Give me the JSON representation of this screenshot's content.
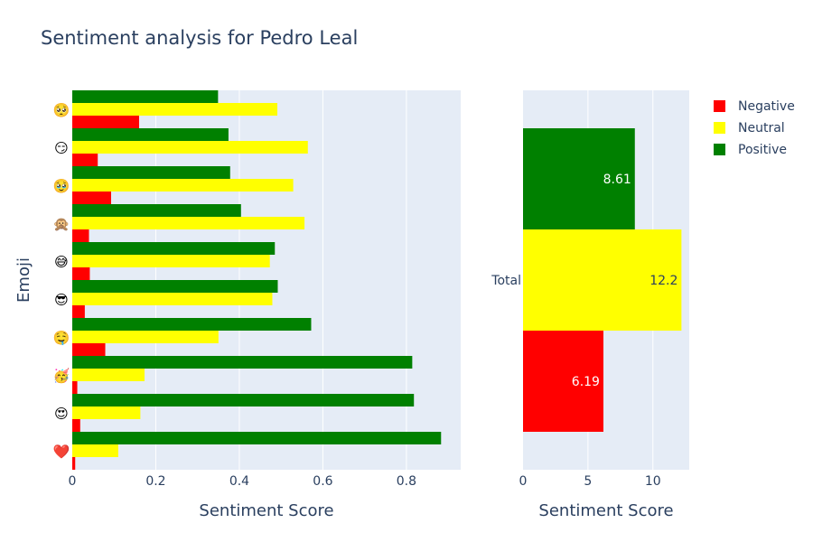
{
  "title": "Sentiment analysis for Pedro Leal",
  "chart_data": [
    {
      "type": "bar",
      "orientation": "horizontal",
      "ylabel": "Emoji",
      "xlabel": "Sentiment Score",
      "categories": [
        "❤️",
        "😍",
        "🥳",
        "🤤",
        "😎",
        "😅",
        "🙊",
        "🥹",
        "😏",
        "🥺"
      ],
      "xlim": [
        0,
        0.93
      ],
      "xticks": [
        "0",
        "0.2",
        "0.4",
        "0.6",
        "0.8"
      ],
      "xtick_values": [
        0,
        0.2,
        0.4,
        0.6,
        0.8
      ],
      "grid": true,
      "series": [
        {
          "name": "Negative",
          "color": "#ff0000",
          "values": [
            0.007,
            0.019,
            0.012,
            0.079,
            0.03,
            0.042,
            0.04,
            0.093,
            0.061,
            0.16
          ]
        },
        {
          "name": "Neutral",
          "color": "#ffff00",
          "values": [
            0.11,
            0.163,
            0.173,
            0.35,
            0.479,
            0.473,
            0.556,
            0.529,
            0.564,
            0.491
          ]
        },
        {
          "name": "Positive",
          "color": "#008000",
          "values": [
            0.883,
            0.818,
            0.814,
            0.572,
            0.492,
            0.485,
            0.404,
            0.378,
            0.374,
            0.349
          ]
        }
      ]
    },
    {
      "type": "bar",
      "orientation": "horizontal",
      "xlabel": "Sentiment Score",
      "categories": [
        "Total"
      ],
      "xlim": [
        0,
        12.8
      ],
      "xticks": [
        "0",
        "5",
        "10"
      ],
      "xtick_values": [
        0,
        5,
        10
      ],
      "grid": true,
      "series": [
        {
          "name": "Negative",
          "color": "#ff0000",
          "values": [
            6.19
          ],
          "label": "6.19",
          "label_color": "#ffffff"
        },
        {
          "name": "Neutral",
          "color": "#ffff00",
          "values": [
            12.2
          ],
          "label": "12.2",
          "label_color": "#2a3f5f"
        },
        {
          "name": "Positive",
          "color": "#008000",
          "values": [
            8.61
          ],
          "label": "8.61",
          "label_color": "#ffffff"
        }
      ]
    }
  ],
  "legend": {
    "placement": "top-right",
    "items": [
      {
        "name": "Negative",
        "color": "#ff0000"
      },
      {
        "name": "Neutral",
        "color": "#ffff00"
      },
      {
        "name": "Positive",
        "color": "#008000"
      }
    ]
  }
}
